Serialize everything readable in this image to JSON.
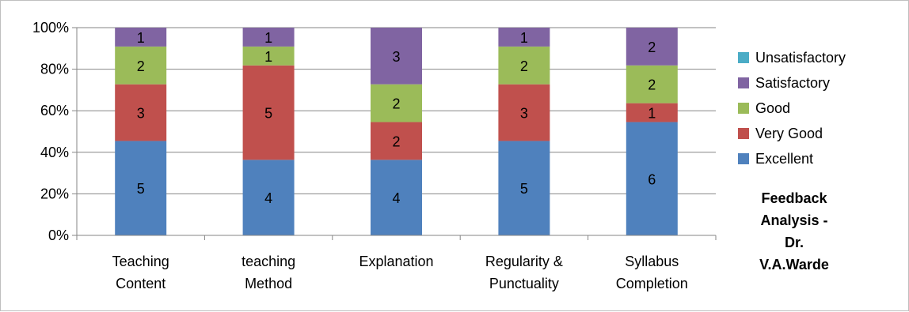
{
  "chart_data": {
    "type": "bar",
    "stacked": "percent",
    "title_lines": [
      "Feedback",
      "Analysis -",
      "Dr.",
      "V.A.Warde"
    ],
    "xlabel": "",
    "ylabel": "",
    "ylim": [
      0,
      100
    ],
    "y_ticks": [
      "0%",
      "20%",
      "40%",
      "60%",
      "80%",
      "100%"
    ],
    "categories": [
      [
        "Teaching",
        "Content"
      ],
      [
        "teaching",
        "Method"
      ],
      [
        "Explanation"
      ],
      [
        "Regularity &",
        "Punctuality"
      ],
      [
        "Syllabus",
        "Completion"
      ]
    ],
    "legend_position": "right",
    "grid": true,
    "series": [
      {
        "name": "Excellent",
        "color": "#4f81bd",
        "values": [
          5,
          4,
          4,
          5,
          6
        ]
      },
      {
        "name": "Very Good",
        "color": "#c0504d",
        "values": [
          3,
          5,
          2,
          3,
          1
        ]
      },
      {
        "name": "Good",
        "color": "#9bbb59",
        "values": [
          2,
          1,
          2,
          2,
          2
        ]
      },
      {
        "name": "Satisfactory",
        "color": "#8064a2",
        "values": [
          1,
          1,
          3,
          1,
          2
        ]
      },
      {
        "name": "Unsatisfactory",
        "color": "#4bacc6",
        "values": [
          0,
          0,
          0,
          0,
          0
        ]
      }
    ]
  }
}
